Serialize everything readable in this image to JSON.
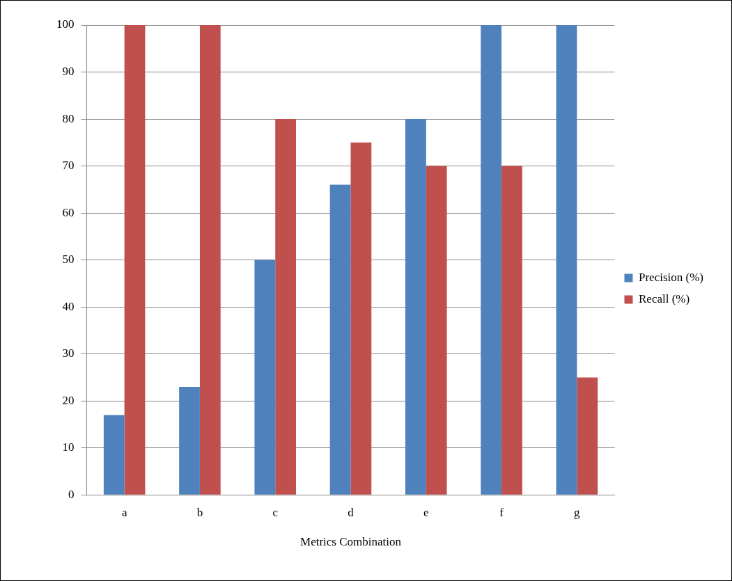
{
  "chart_data": {
    "type": "bar",
    "xlabel": "Metrics Combination",
    "categories": [
      "a",
      "b",
      "c",
      "d",
      "e",
      "f",
      "g"
    ],
    "series": [
      {
        "name": "Precision (%)",
        "color": "#4f81bd",
        "values": [
          17,
          23,
          50,
          66,
          80,
          100,
          100
        ]
      },
      {
        "name": "Recall (%)",
        "color": "#c0504d",
        "values": [
          100,
          100,
          80,
          75,
          70,
          70,
          25
        ]
      }
    ],
    "ylim": [
      0,
      100
    ],
    "yticks": [
      0,
      10,
      20,
      30,
      40,
      50,
      60,
      70,
      80,
      90,
      100
    ],
    "grid": "y",
    "legend": "right"
  }
}
